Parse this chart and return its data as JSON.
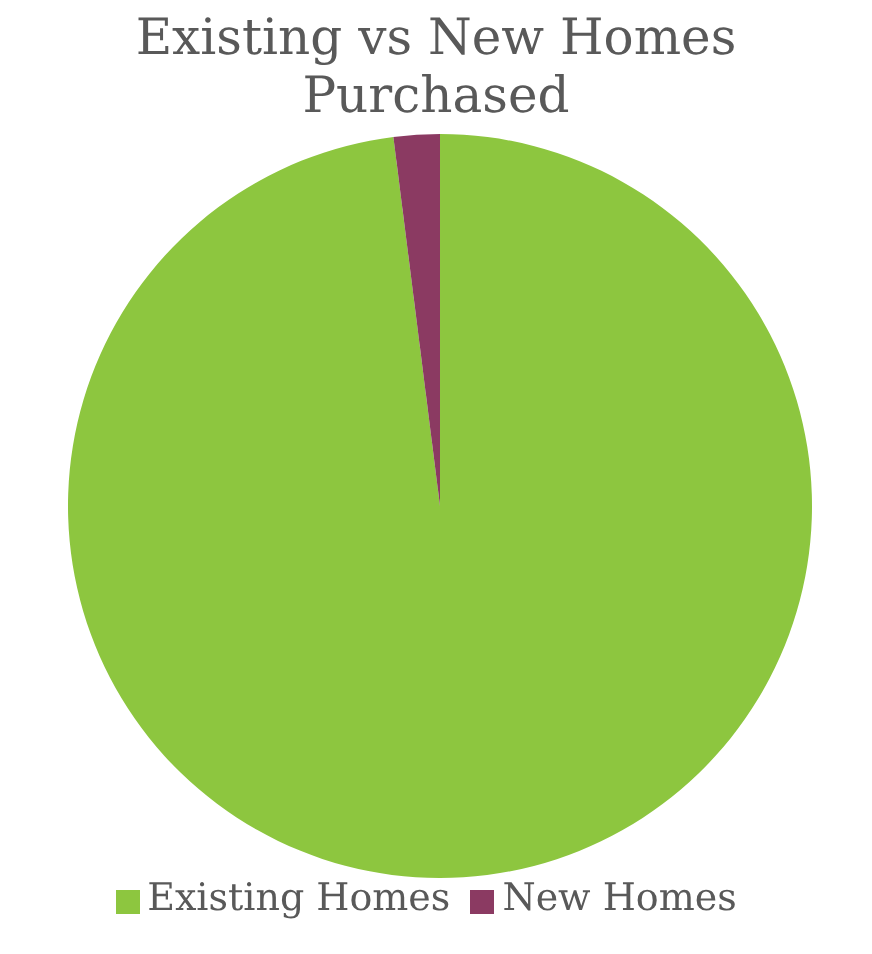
{
  "chart_data": {
    "type": "pie",
    "title": "Existing vs New Homes Purchased",
    "categories": [
      "Existing Homes",
      "New Homes"
    ],
    "values": [
      98,
      2
    ],
    "colors": [
      "#8dc63f",
      "#8b3a62"
    ],
    "legend": "bottom"
  }
}
